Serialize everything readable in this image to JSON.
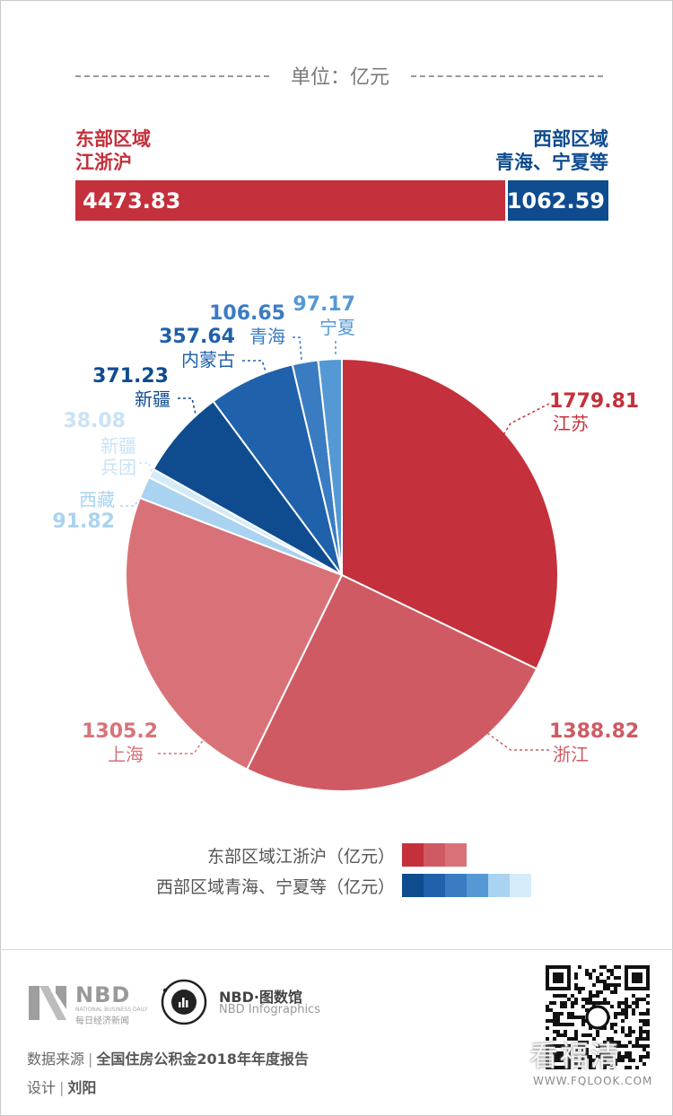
{
  "unit_label": "单位：亿元",
  "colors": {
    "east_main": "#c4303b",
    "west_main": "#0f4c8f",
    "east_shades": [
      "#c4303b",
      "#cf5a63",
      "#d97278"
    ],
    "west_shades": [
      "#0f4c8f",
      "#1f61ab",
      "#3a7cc2",
      "#5599d4",
      "#a9d3f0",
      "#d5ebfa"
    ]
  },
  "chart_data": [
    {
      "type": "bar",
      "orientation": "horizontal-stacked",
      "categories": [
        "东部区域江浙沪",
        "西部区域青海、宁夏等"
      ],
      "values": [
        4473.83,
        1062.59
      ],
      "labels": {
        "east_line1": "东部区域",
        "east_line2": "江浙沪",
        "west_line1": "西部区域",
        "west_line2": "青海、宁夏等"
      },
      "value_labels": [
        "4473.83",
        "1062.59"
      ]
    },
    {
      "type": "pie",
      "slices": [
        {
          "name": "江苏",
          "value": 1779.81,
          "label": "1779.81",
          "group": "east"
        },
        {
          "name": "浙江",
          "value": 1388.82,
          "label": "1388.82",
          "group": "east"
        },
        {
          "name": "上海",
          "value": 1305.2,
          "label": "1305.2",
          "group": "east"
        },
        {
          "name": "西藏",
          "value": 91.82,
          "label": "91.82",
          "group": "west"
        },
        {
          "name": "新疆兵团",
          "value": 38.08,
          "label": "38.08",
          "group": "west",
          "name_lines": [
            "新疆",
            "兵团"
          ]
        },
        {
          "name": "新疆",
          "value": 371.23,
          "label": "371.23",
          "group": "west"
        },
        {
          "name": "内蒙古",
          "value": 357.64,
          "label": "357.64",
          "group": "west"
        },
        {
          "name": "青海",
          "value": 106.65,
          "label": "106.65",
          "group": "west"
        },
        {
          "name": "宁夏",
          "value": 97.17,
          "label": "97.17",
          "group": "west"
        }
      ],
      "legend": [
        {
          "text": "东部区域江浙沪（亿元）",
          "group": "east"
        },
        {
          "text": "西部区域青海、宁夏等（亿元）",
          "group": "west"
        }
      ]
    }
  ],
  "footer": {
    "nbd_word": "NBD",
    "nbd_sub": "NATIONAL BUSINESS DAILY",
    "nbd_cn": "每日经济新闻",
    "info_word": "NBD·图数馆",
    "info_sub": "NBD Infographics",
    "source_label": "数据来源",
    "source_value": "全国住房公积金2018年年度报告",
    "design_label": "设计",
    "design_value": "刘阳",
    "watermark": "看福清",
    "watermark_url": "WWW.FQLOOK.COM"
  }
}
